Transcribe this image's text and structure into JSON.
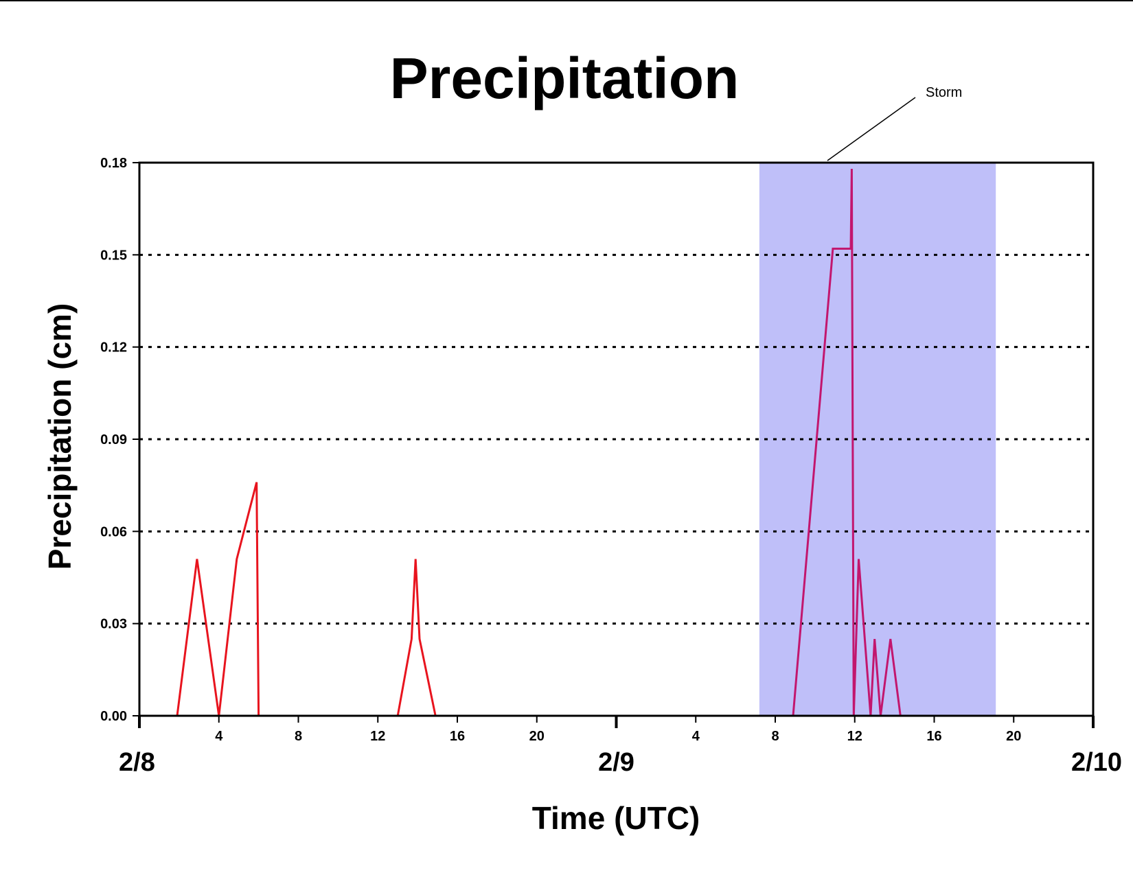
{
  "chart_data": {
    "type": "line",
    "title": "Precipitation",
    "xlabel": "Time (UTC)",
    "ylabel": "Precipitation (cm)",
    "ylim": [
      0,
      0.18
    ],
    "xlim_hours": [
      0,
      48
    ],
    "y_ticks": [
      "0.00",
      "0.03",
      "0.06",
      "0.09",
      "0.12",
      "0.15",
      "0.18"
    ],
    "y_tick_values": [
      0,
      0.03,
      0.06,
      0.09,
      0.12,
      0.15,
      0.18
    ],
    "x_minor_ticks": [
      {
        "hour": 4,
        "label": "4"
      },
      {
        "hour": 8,
        "label": "8"
      },
      {
        "hour": 12,
        "label": "12"
      },
      {
        "hour": 16,
        "label": "16"
      },
      {
        "hour": 20,
        "label": "20"
      },
      {
        "hour": 28,
        "label": "4"
      },
      {
        "hour": 32,
        "label": "8"
      },
      {
        "hour": 36,
        "label": "12"
      },
      {
        "hour": 40,
        "label": "16"
      },
      {
        "hour": 44,
        "label": "20"
      }
    ],
    "x_date_labels": [
      {
        "hour": 0,
        "label": "2/8"
      },
      {
        "hour": 24,
        "label": "2/9"
      },
      {
        "hour": 48,
        "label": "2/10"
      }
    ],
    "grid": "horizontal dotted",
    "annotation": {
      "label": "Storm",
      "start_hour": 31.2,
      "end_hour": 43.1,
      "color": "#bfbff9"
    },
    "series": [
      {
        "color": "#e8141e",
        "x": [
          0,
          1.9,
          2.9,
          4.0,
          4.9,
          5.9,
          6.0,
          13.0,
          13.7,
          13.9,
          14.1,
          14.9,
          31.2
        ],
        "y": [
          0,
          0,
          0.051,
          0,
          0.051,
          0.076,
          0,
          0,
          0.025,
          0.051,
          0.025,
          0,
          0
        ]
      },
      {
        "color": "#c2166e",
        "x": [
          31.2,
          32.9,
          34.9,
          35.8,
          35.85,
          35.95,
          36.2,
          36.8,
          37.0,
          37.3,
          37.8,
          38.3,
          48.0
        ],
        "y": [
          0,
          0,
          0.152,
          0.152,
          0.178,
          0,
          0.051,
          0,
          0.025,
          0,
          0.025,
          0,
          0
        ]
      }
    ]
  }
}
